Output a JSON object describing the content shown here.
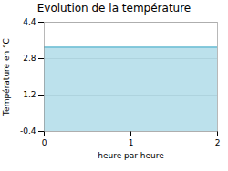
{
  "chart_data": {
    "type": "area",
    "title": "Evolution de la température",
    "x_label": "heure par heure",
    "y_label": "Température en °C",
    "x": [
      0,
      2
    ],
    "values": [
      3.3,
      3.3
    ],
    "color": "#6bbdd4",
    "xlim": [
      0,
      2
    ],
    "xticks": [
      0,
      1,
      2
    ],
    "ylim": [
      -0.4,
      4.4
    ],
    "yticks": [
      -0.4,
      1.2,
      2.8,
      4.4
    ],
    "grid": true
  }
}
